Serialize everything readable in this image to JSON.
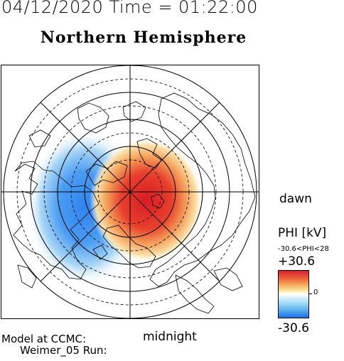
{
  "header": {
    "timestamp": "04/12/2020 Time = 01:22:00",
    "hemisphere": "Northern Hemisphere"
  },
  "plot": {
    "potential_max": 30.6,
    "potential_min": -30.6,
    "positive_cell_color": "#e0242c",
    "negative_cell_color": "#3a8ef0"
  },
  "labels": {
    "dawn": "dawn",
    "midnight": "midnight"
  },
  "legend": {
    "title": "PHI [kV]",
    "range": "-30.6<PHI<28",
    "max": "+30.6",
    "zero": "0",
    "min": "-30.6"
  },
  "footer": {
    "model_line1": "Model at CCMC:",
    "model_line2": "Weimer_05 Run:"
  }
}
